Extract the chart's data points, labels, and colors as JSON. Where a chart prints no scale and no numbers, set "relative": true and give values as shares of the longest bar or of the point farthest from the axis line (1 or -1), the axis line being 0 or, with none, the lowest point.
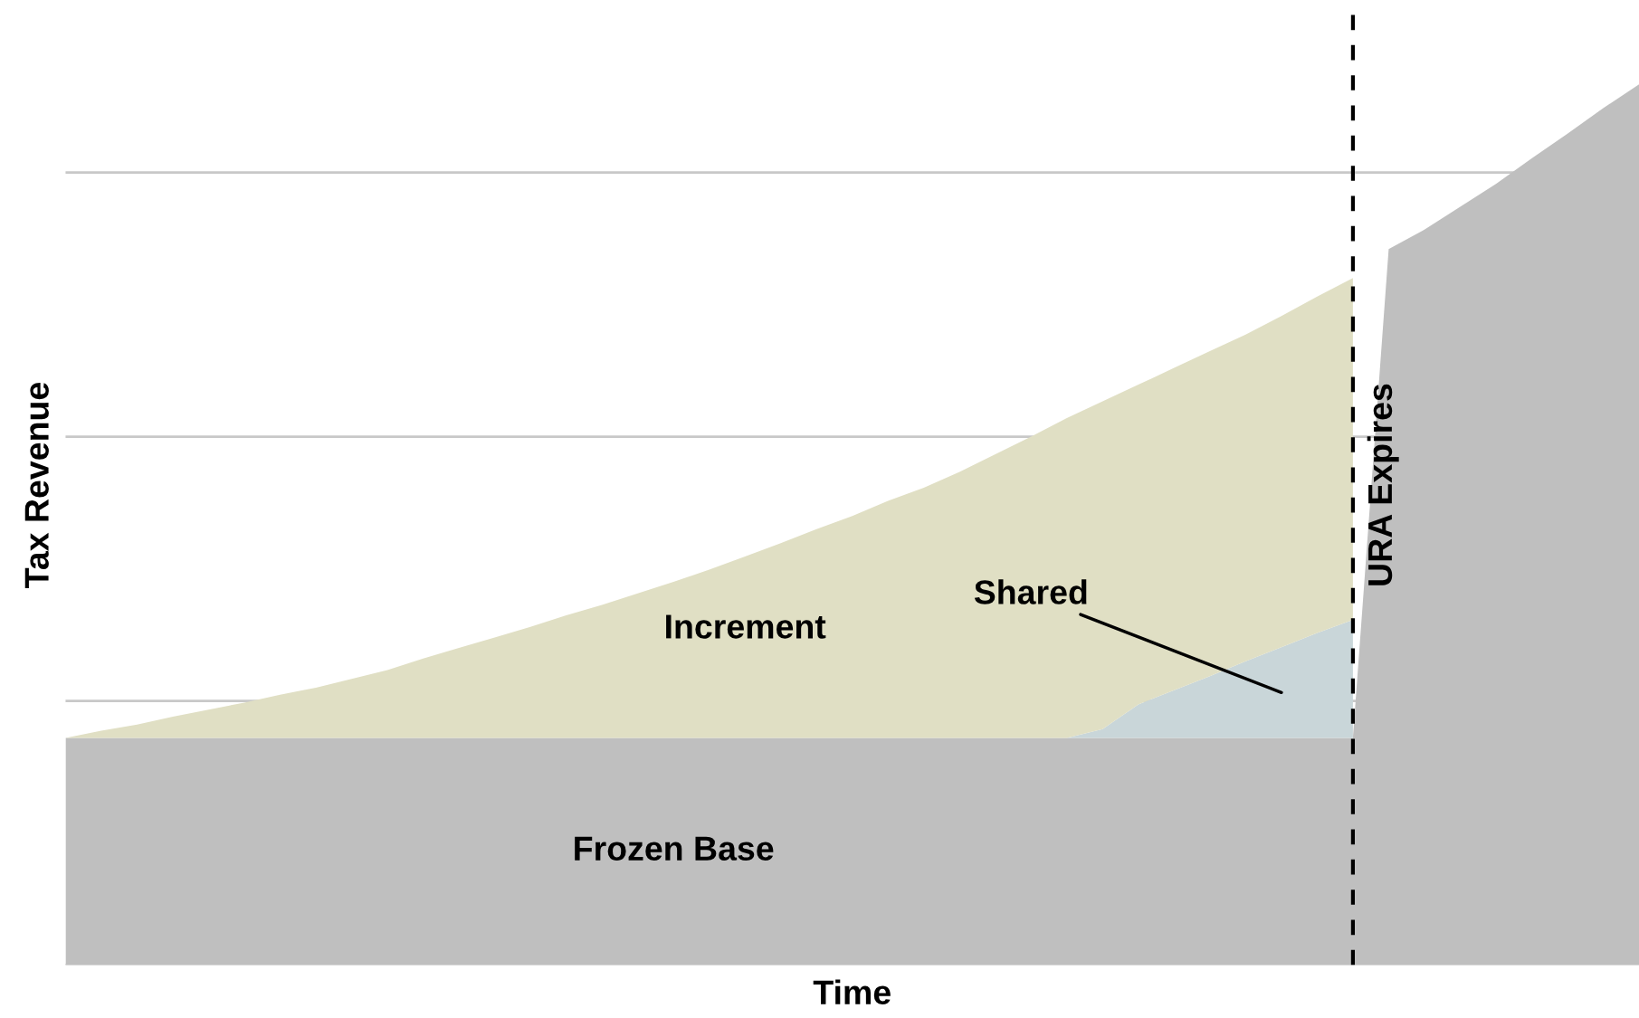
{
  "chart_data": {
    "type": "area",
    "relative": true,
    "stacked": true,
    "xlabel": "Time",
    "ylabel": "Tax Revenue",
    "grid": "y",
    "categories": [
      null,
      null,
      null,
      null,
      null,
      null,
      null,
      null,
      null,
      null,
      null,
      null,
      null,
      null,
      null,
      null,
      null,
      null,
      null,
      null,
      null,
      null,
      null,
      null,
      null,
      null,
      null,
      null,
      null,
      null,
      null,
      null,
      null,
      null,
      null,
      null,
      null,
      null,
      null,
      null,
      null,
      null,
      null,
      null,
      null
    ],
    "series": [
      {
        "name": "Frozen Base",
        "color": "#bfbfbf",
        "values": [
          0.258,
          0.258,
          0.258,
          0.258,
          0.258,
          0.258,
          0.258,
          0.258,
          0.258,
          0.258,
          0.258,
          0.258,
          0.258,
          0.258,
          0.258,
          0.258,
          0.258,
          0.258,
          0.258,
          0.258,
          0.258,
          0.258,
          0.258,
          0.258,
          0.258,
          0.258,
          0.258,
          0.258,
          0.258,
          0.258,
          0.258,
          0.258,
          0.258,
          0.258,
          0.258,
          0.258,
          0.258,
          0.813,
          0.835,
          0.861,
          0.887,
          0.916,
          0.944,
          0.973,
          1.0
        ]
      },
      {
        "name": "Shared",
        "color": "#c9d6d9",
        "values": [
          null,
          null,
          null,
          null,
          null,
          null,
          null,
          null,
          null,
          null,
          null,
          null,
          null,
          null,
          null,
          null,
          null,
          null,
          null,
          null,
          null,
          null,
          null,
          null,
          null,
          null,
          null,
          null,
          0,
          0.01,
          0.038,
          0.054,
          0.07,
          0.087,
          0.103,
          0.119,
          0.134,
          null,
          null,
          null,
          null,
          null,
          null,
          null,
          null
        ]
      },
      {
        "name": "Increment",
        "color": "#e0dfc4",
        "values": [
          0,
          0.008,
          0.015,
          0.024,
          0.032,
          0.04,
          0.049,
          0.057,
          0.067,
          0.077,
          0.09,
          0.102,
          0.114,
          0.126,
          0.139,
          0.151,
          0.164,
          0.177,
          0.191,
          0.206,
          0.221,
          0.237,
          0.252,
          0.269,
          0.284,
          0.302,
          0.322,
          0.342,
          0.363,
          0.372,
          0.363,
          0.366,
          0.369,
          0.371,
          0.376,
          0.382,
          0.388,
          null,
          null,
          null,
          null,
          null,
          null,
          null,
          null
        ]
      }
    ],
    "annotations": [
      "URA Expires"
    ]
  }
}
